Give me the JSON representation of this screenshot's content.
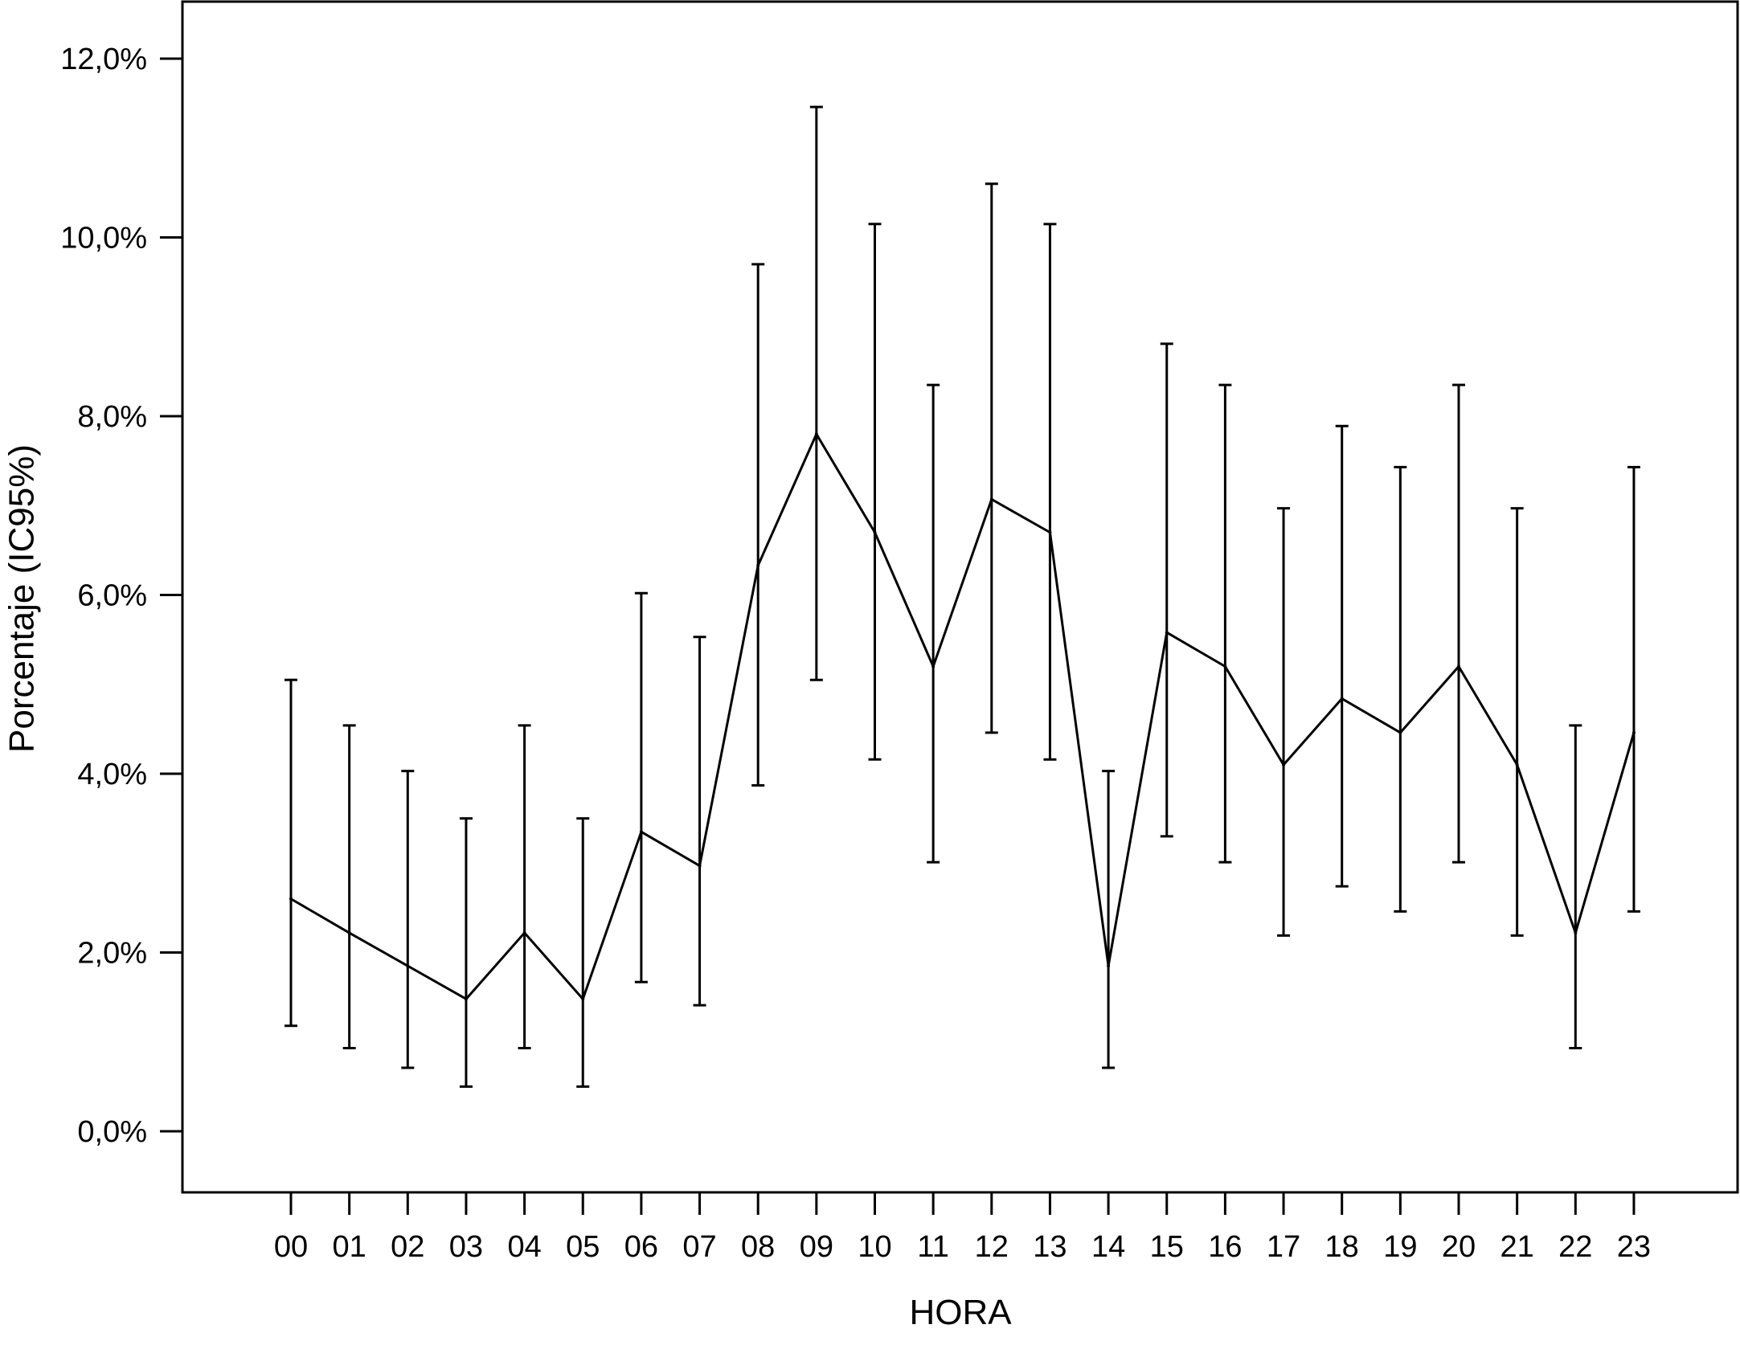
{
  "chart_data": {
    "type": "line",
    "title": "",
    "xlabel": "HORA",
    "ylabel": "Porcentaje (IC95%)",
    "categories": [
      "00",
      "01",
      "02",
      "03",
      "04",
      "05",
      "06",
      "07",
      "08",
      "09",
      "10",
      "11",
      "12",
      "13",
      "14",
      "15",
      "16",
      "17",
      "18",
      "19",
      "20",
      "21",
      "22",
      "23"
    ],
    "series": [
      {
        "values": [
          2.6,
          2.22,
          1.85,
          1.48,
          2.22,
          1.48,
          3.35,
          2.97,
          6.33,
          7.8,
          6.7,
          5.2,
          7.07,
          6.7,
          1.85,
          5.58,
          5.2,
          4.1,
          4.84,
          4.46,
          5.2,
          4.1,
          2.22,
          4.46
        ],
        "ci_lower": [
          1.18,
          0.93,
          0.71,
          0.5,
          0.93,
          0.5,
          1.67,
          1.41,
          3.87,
          5.05,
          4.16,
          3.01,
          4.46,
          4.16,
          0.71,
          3.3,
          3.01,
          2.19,
          2.74,
          2.46,
          3.01,
          2.19,
          0.93,
          2.46
        ],
        "ci_upper": [
          5.05,
          4.54,
          4.03,
          3.5,
          4.54,
          3.5,
          6.02,
          5.53,
          9.7,
          11.46,
          10.15,
          8.35,
          10.6,
          10.15,
          4.03,
          8.81,
          8.35,
          6.97,
          7.89,
          7.43,
          8.35,
          6.97,
          4.54,
          7.43
        ]
      }
    ],
    "yticks": [
      0,
      2,
      4,
      6,
      8,
      10,
      12
    ],
    "yticklabels": [
      "0,0%",
      "2,0%",
      "4,0%",
      "6,0%",
      "8,0%",
      "10,0%",
      "12,0%"
    ],
    "ylim": [
      -1.33,
      12.67
    ],
    "grid": false,
    "legend": "none"
  }
}
